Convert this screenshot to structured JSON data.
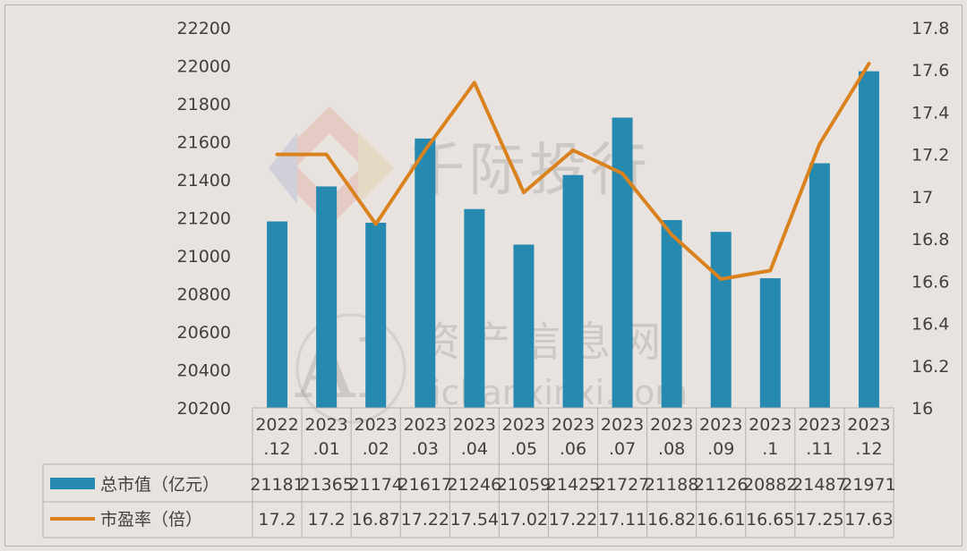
{
  "chart_data": {
    "type": "bar+line",
    "categories": [
      [
        "2022",
        ".12"
      ],
      [
        "2023",
        ".01"
      ],
      [
        "2023",
        ".02"
      ],
      [
        "2023",
        ".03"
      ],
      [
        "2023",
        ".04"
      ],
      [
        "2023",
        ".05"
      ],
      [
        "2023",
        ".06"
      ],
      [
        "2023",
        ".07"
      ],
      [
        "2023",
        ".08"
      ],
      [
        "2023",
        ".09"
      ],
      [
        "2023",
        ".1"
      ],
      [
        "2023",
        ".11"
      ],
      [
        "2023",
        ".12"
      ]
    ],
    "series": [
      {
        "name": "总市值（亿元）",
        "type": "bar",
        "axis": "left",
        "color": "#2589b0",
        "values": [
          21181,
          21365,
          21174,
          21617,
          21246,
          21059,
          21425,
          21727,
          21188,
          21126,
          20882,
          21487,
          21971
        ]
      },
      {
        "name": "市盈率（倍）",
        "type": "line",
        "axis": "right",
        "color": "#d9821e",
        "values": [
          17.2,
          17.2,
          16.87,
          17.22,
          17.54,
          17.02,
          17.22,
          17.11,
          16.82,
          16.61,
          16.65,
          17.25,
          17.63
        ]
      }
    ],
    "y_left": {
      "min": 20200,
      "max": 22200,
      "step": 200
    },
    "y_right": {
      "min": 16,
      "max": 17.8,
      "step": 0.2
    },
    "y_right_labels": [
      "16",
      "16.2",
      "16.4",
      "16.6",
      "16.8",
      "17",
      "17.2",
      "17.4",
      "17.6",
      "17.8"
    ],
    "table_values": {
      "bar": [
        "21181",
        "21365",
        "21174",
        "21617",
        "21246",
        "21059",
        "21425",
        "21727",
        "21188",
        "21126",
        "20882",
        "21487",
        "21971"
      ],
      "line": [
        "17.2",
        "17.2",
        "16.87",
        "17.22",
        "17.54",
        "17.02",
        "17.22",
        "17.11",
        "16.82",
        "16.61",
        "16.65",
        "17.25",
        "17.63"
      ]
    },
    "grid": false,
    "legend": "data-table-left"
  },
  "watermarks": {
    "brand_text": "千际投行",
    "site_text": "资产信息网",
    "domain_text": "zichanxinxi.com",
    "ai_text": "AI"
  }
}
